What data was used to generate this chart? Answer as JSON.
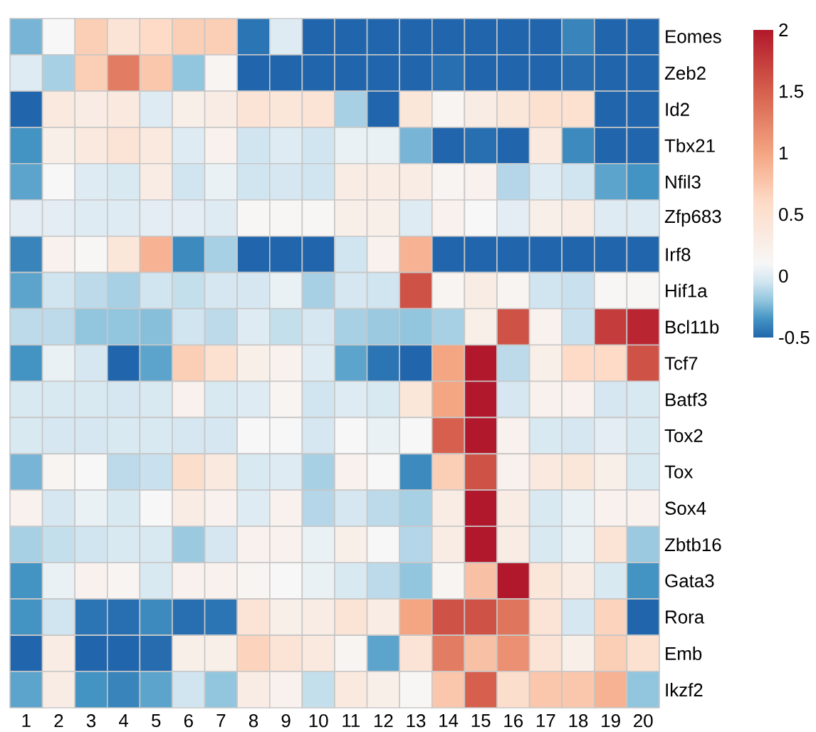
{
  "chart_data": {
    "type": "heatmap",
    "categories": [
      "1",
      "2",
      "3",
      "4",
      "5",
      "6",
      "7",
      "8",
      "9",
      "10",
      "11",
      "12",
      "13",
      "14",
      "15",
      "16",
      "17",
      "18",
      "19",
      "20"
    ],
    "y_categories": [
      "Eomes",
      "Zeb2",
      "Id2",
      "Tbx21",
      "Nfil3",
      "Zfp683",
      "Irf8",
      "Hif1a",
      "Bcl11b",
      "Tcf7",
      "Batf3",
      "Tox2",
      "Tox",
      "Sox4",
      "Zbtb16",
      "Gata3",
      "Rora",
      "Emb",
      "Ikzf2"
    ],
    "cells": [
      [
        -0.25,
        0.1,
        0.7,
        0.45,
        0.6,
        0.7,
        0.7,
        -0.45,
        0,
        -0.5,
        -0.5,
        -0.5,
        -0.5,
        -0.5,
        -0.5,
        -0.5,
        -0.5,
        -0.4,
        -0.5,
        -0.5
      ],
      [
        0,
        -0.15,
        0.7,
        1.3,
        0.75,
        -0.2,
        0.15,
        -0.5,
        -0.5,
        -0.5,
        -0.5,
        -0.5,
        -0.5,
        -0.47,
        -0.5,
        -0.5,
        -0.5,
        -0.48,
        -0.5,
        -0.5
      ],
      [
        -0.5,
        0.35,
        0.3,
        0.35,
        0,
        0.25,
        0.3,
        0.45,
        0.4,
        0.45,
        -0.15,
        -0.5,
        0.4,
        0.15,
        0.3,
        0.4,
        0.5,
        0.5,
        -0.5,
        -0.5
      ],
      [
        -0.35,
        0.25,
        0.35,
        0.45,
        0.35,
        0,
        0.2,
        -0.05,
        0,
        -0.05,
        0.05,
        0.05,
        -0.25,
        -0.5,
        -0.47,
        -0.5,
        0.35,
        -0.38,
        -0.5,
        -0.5
      ],
      [
        -0.3,
        0.1,
        0,
        -0.02,
        0.3,
        -0.05,
        0.05,
        -0.05,
        -0.03,
        -0.05,
        0.3,
        0.3,
        0.3,
        0.15,
        0.2,
        -0.12,
        0,
        -0.05,
        -0.3,
        -0.35
      ],
      [
        0.02,
        0.02,
        0,
        0,
        0.02,
        0.02,
        0,
        0.12,
        0.12,
        0.12,
        0.25,
        0.25,
        0,
        0.2,
        0.1,
        0.02,
        0.25,
        0.3,
        0,
        0
      ],
      [
        -0.4,
        0.2,
        0.12,
        0.4,
        0.9,
        -0.38,
        -0.15,
        -0.5,
        -0.5,
        -0.5,
        -0.05,
        0.2,
        0.9,
        -0.5,
        -0.5,
        -0.5,
        -0.5,
        -0.5,
        -0.5,
        -0.5
      ],
      [
        -0.3,
        -0.05,
        -0.1,
        -0.15,
        -0.05,
        -0.08,
        -0.03,
        -0.03,
        0.05,
        -0.15,
        -0.03,
        -0.05,
        1.6,
        0.15,
        0.3,
        0.15,
        -0.05,
        -0.07,
        0.12,
        0.12
      ],
      [
        -0.1,
        -0.1,
        -0.2,
        -0.2,
        -0.22,
        -0.05,
        -0.1,
        0,
        -0.08,
        -0.03,
        -0.15,
        -0.18,
        -0.2,
        -0.15,
        0.25,
        1.6,
        0.2,
        -0.07,
        1.75,
        1.9
      ],
      [
        -0.35,
        0.05,
        -0.03,
        -0.5,
        -0.3,
        0.7,
        0.5,
        0.25,
        0.2,
        0,
        -0.3,
        -0.45,
        -0.5,
        1.0,
        2.0,
        -0.1,
        0.25,
        0.6,
        0.6,
        1.6
      ],
      [
        -0.02,
        -0.02,
        -0.02,
        -0.03,
        -0.02,
        0.2,
        -0.02,
        0,
        0.15,
        -0.05,
        0,
        -0.02,
        0.4,
        1.0,
        2.0,
        -0.03,
        0.2,
        0.2,
        -0.03,
        -0.02
      ],
      [
        -0.02,
        -0.03,
        -0.03,
        -0.02,
        -0.02,
        -0.03,
        -0.03,
        0.1,
        0.1,
        -0.03,
        0.1,
        0.05,
        0.1,
        1.5,
        2.0,
        0.2,
        -0.02,
        -0.03,
        0.02,
        -0.02
      ],
      [
        -0.25,
        0.15,
        0.1,
        -0.1,
        -0.07,
        0.55,
        0.35,
        -0.02,
        0,
        -0.15,
        0.2,
        0.1,
        -0.38,
        0.7,
        1.6,
        0.2,
        0.35,
        0.4,
        0.25,
        -0.02
      ],
      [
        0.2,
        -0.03,
        0.05,
        -0.02,
        0.1,
        0.3,
        0.2,
        0,
        0.2,
        -0.12,
        -0.03,
        -0.1,
        -0.15,
        0.3,
        2.0,
        0.3,
        -0.02,
        0.05,
        0.2,
        0.2
      ],
      [
        -0.15,
        -0.08,
        -0.05,
        -0.02,
        -0.02,
        -0.18,
        -0.03,
        0.2,
        0.2,
        0.05,
        0.25,
        0.1,
        -0.12,
        0.3,
        2.0,
        0.3,
        -0.02,
        0.05,
        0.45,
        -0.18
      ],
      [
        -0.35,
        0.05,
        0.2,
        0.15,
        -0.02,
        0.2,
        0.2,
        0.15,
        0.1,
        0.05,
        -0.02,
        -0.1,
        -0.2,
        0.15,
        0.8,
        2.0,
        0.4,
        0.3,
        -0.02,
        -0.35
      ],
      [
        -0.35,
        -0.05,
        -0.45,
        -0.47,
        -0.38,
        -0.47,
        -0.45,
        0.45,
        0.25,
        0.3,
        0.45,
        0.3,
        1.0,
        1.6,
        1.6,
        1.35,
        0.45,
        -0.03,
        0.65,
        -0.5
      ],
      [
        -0.5,
        0.3,
        -0.5,
        -0.5,
        -0.48,
        0.25,
        0.25,
        0.65,
        0.45,
        0.35,
        0.15,
        -0.3,
        0.45,
        1.3,
        0.8,
        1.15,
        0.45,
        0.25,
        0.7,
        0.5
      ],
      [
        -0.3,
        0.3,
        -0.35,
        -0.4,
        -0.3,
        -0.05,
        -0.2,
        0.3,
        0.2,
        -0.08,
        0.35,
        0.25,
        0.12,
        0.75,
        1.5,
        0.55,
        0.75,
        0.75,
        0.9,
        -0.2
      ]
    ],
    "clim": [
      -0.5,
      2
    ],
    "cticks": [
      -0.5,
      0,
      0.5,
      1,
      1.5,
      2
    ]
  }
}
